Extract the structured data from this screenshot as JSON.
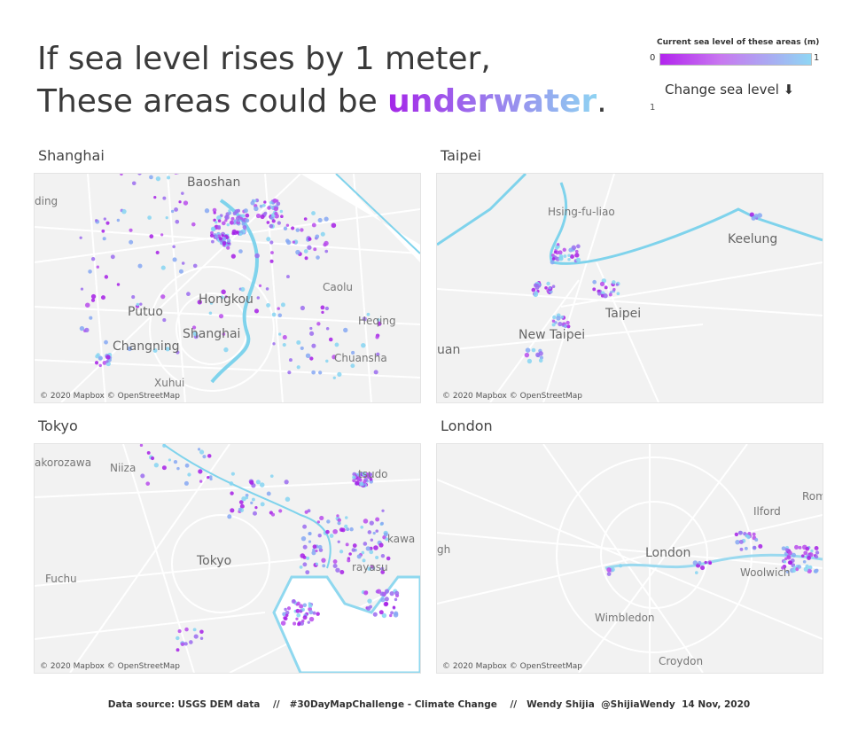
{
  "header": {
    "line1": "If sea level rises by 1 meter,",
    "line2_prefix": "These areas could be ",
    "line2_highlight": "underwater",
    "line2_suffix": "."
  },
  "legend": {
    "title": "Current sea level of these areas (m)",
    "min": "0",
    "max": "1"
  },
  "control": {
    "label": "Change sea level ⬇",
    "value": "1"
  },
  "maps": [
    {
      "title": "Shanghai",
      "attribution": "© 2020 Mapbox © OpenStreetMap",
      "places": [
        "Baoshan",
        "ding",
        "Caolu",
        "Hongkou",
        "Putuo",
        "Heqing",
        "Changning",
        "Shanghai",
        "Chuansha",
        "Xuhui"
      ]
    },
    {
      "title": "Taipei",
      "attribution": "© 2020 Mapbox © OpenStreetMap",
      "places": [
        "Hsing-fu-liao",
        "Keelung",
        "Taipei",
        "New Taipei",
        "uan"
      ]
    },
    {
      "title": "Tokyo",
      "attribution": "© 2020 Mapbox © OpenStreetMap",
      "places": [
        "akorozawa",
        "Niiza",
        "tsudo",
        "Tokyo",
        "kawa",
        "Fuchu",
        "rayasu"
      ]
    },
    {
      "title": "London",
      "attribution": "© 2020 Mapbox © OpenStreetMap",
      "places": [
        "Romf",
        "Ilford",
        "gh",
        "London",
        "Woolwich",
        "Wimbledon",
        "Croydon"
      ]
    }
  ],
  "footer": {
    "source": "Data source: USGS DEM data",
    "separator": "//",
    "challenge": "#30DayMapChallenge - Climate Change",
    "author": "Wendy Shijia",
    "handle": "@ShijiaWendy",
    "date": "14 Nov, 2020"
  }
}
